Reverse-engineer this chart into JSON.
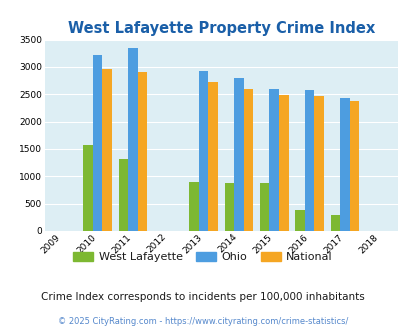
{
  "title": "West Lafayette Property Crime Index",
  "years": [
    2009,
    2010,
    2011,
    2012,
    2013,
    2014,
    2015,
    2016,
    2017,
    2018
  ],
  "data_years": [
    2010,
    2011,
    2013,
    2014,
    2015,
    2016,
    2017
  ],
  "west_lafayette": [
    1580,
    1320,
    890,
    880,
    880,
    380,
    295
  ],
  "ohio": [
    3220,
    3350,
    2930,
    2790,
    2600,
    2570,
    2430
  ],
  "national": [
    2960,
    2900,
    2720,
    2590,
    2495,
    2470,
    2370
  ],
  "wl_color": "#7db832",
  "ohio_color": "#4d9de0",
  "national_color": "#f5a623",
  "bg_color": "#ddeef4",
  "title_color": "#1a5fa8",
  "ylabel_max": 3500,
  "yticks": [
    0,
    500,
    1000,
    1500,
    2000,
    2500,
    3000,
    3500
  ],
  "subtitle": "Crime Index corresponds to incidents per 100,000 inhabitants",
  "footer": "© 2025 CityRating.com - https://www.cityrating.com/crime-statistics/",
  "legend_labels": [
    "West Lafayette",
    "Ohio",
    "National"
  ],
  "bar_width": 0.27
}
